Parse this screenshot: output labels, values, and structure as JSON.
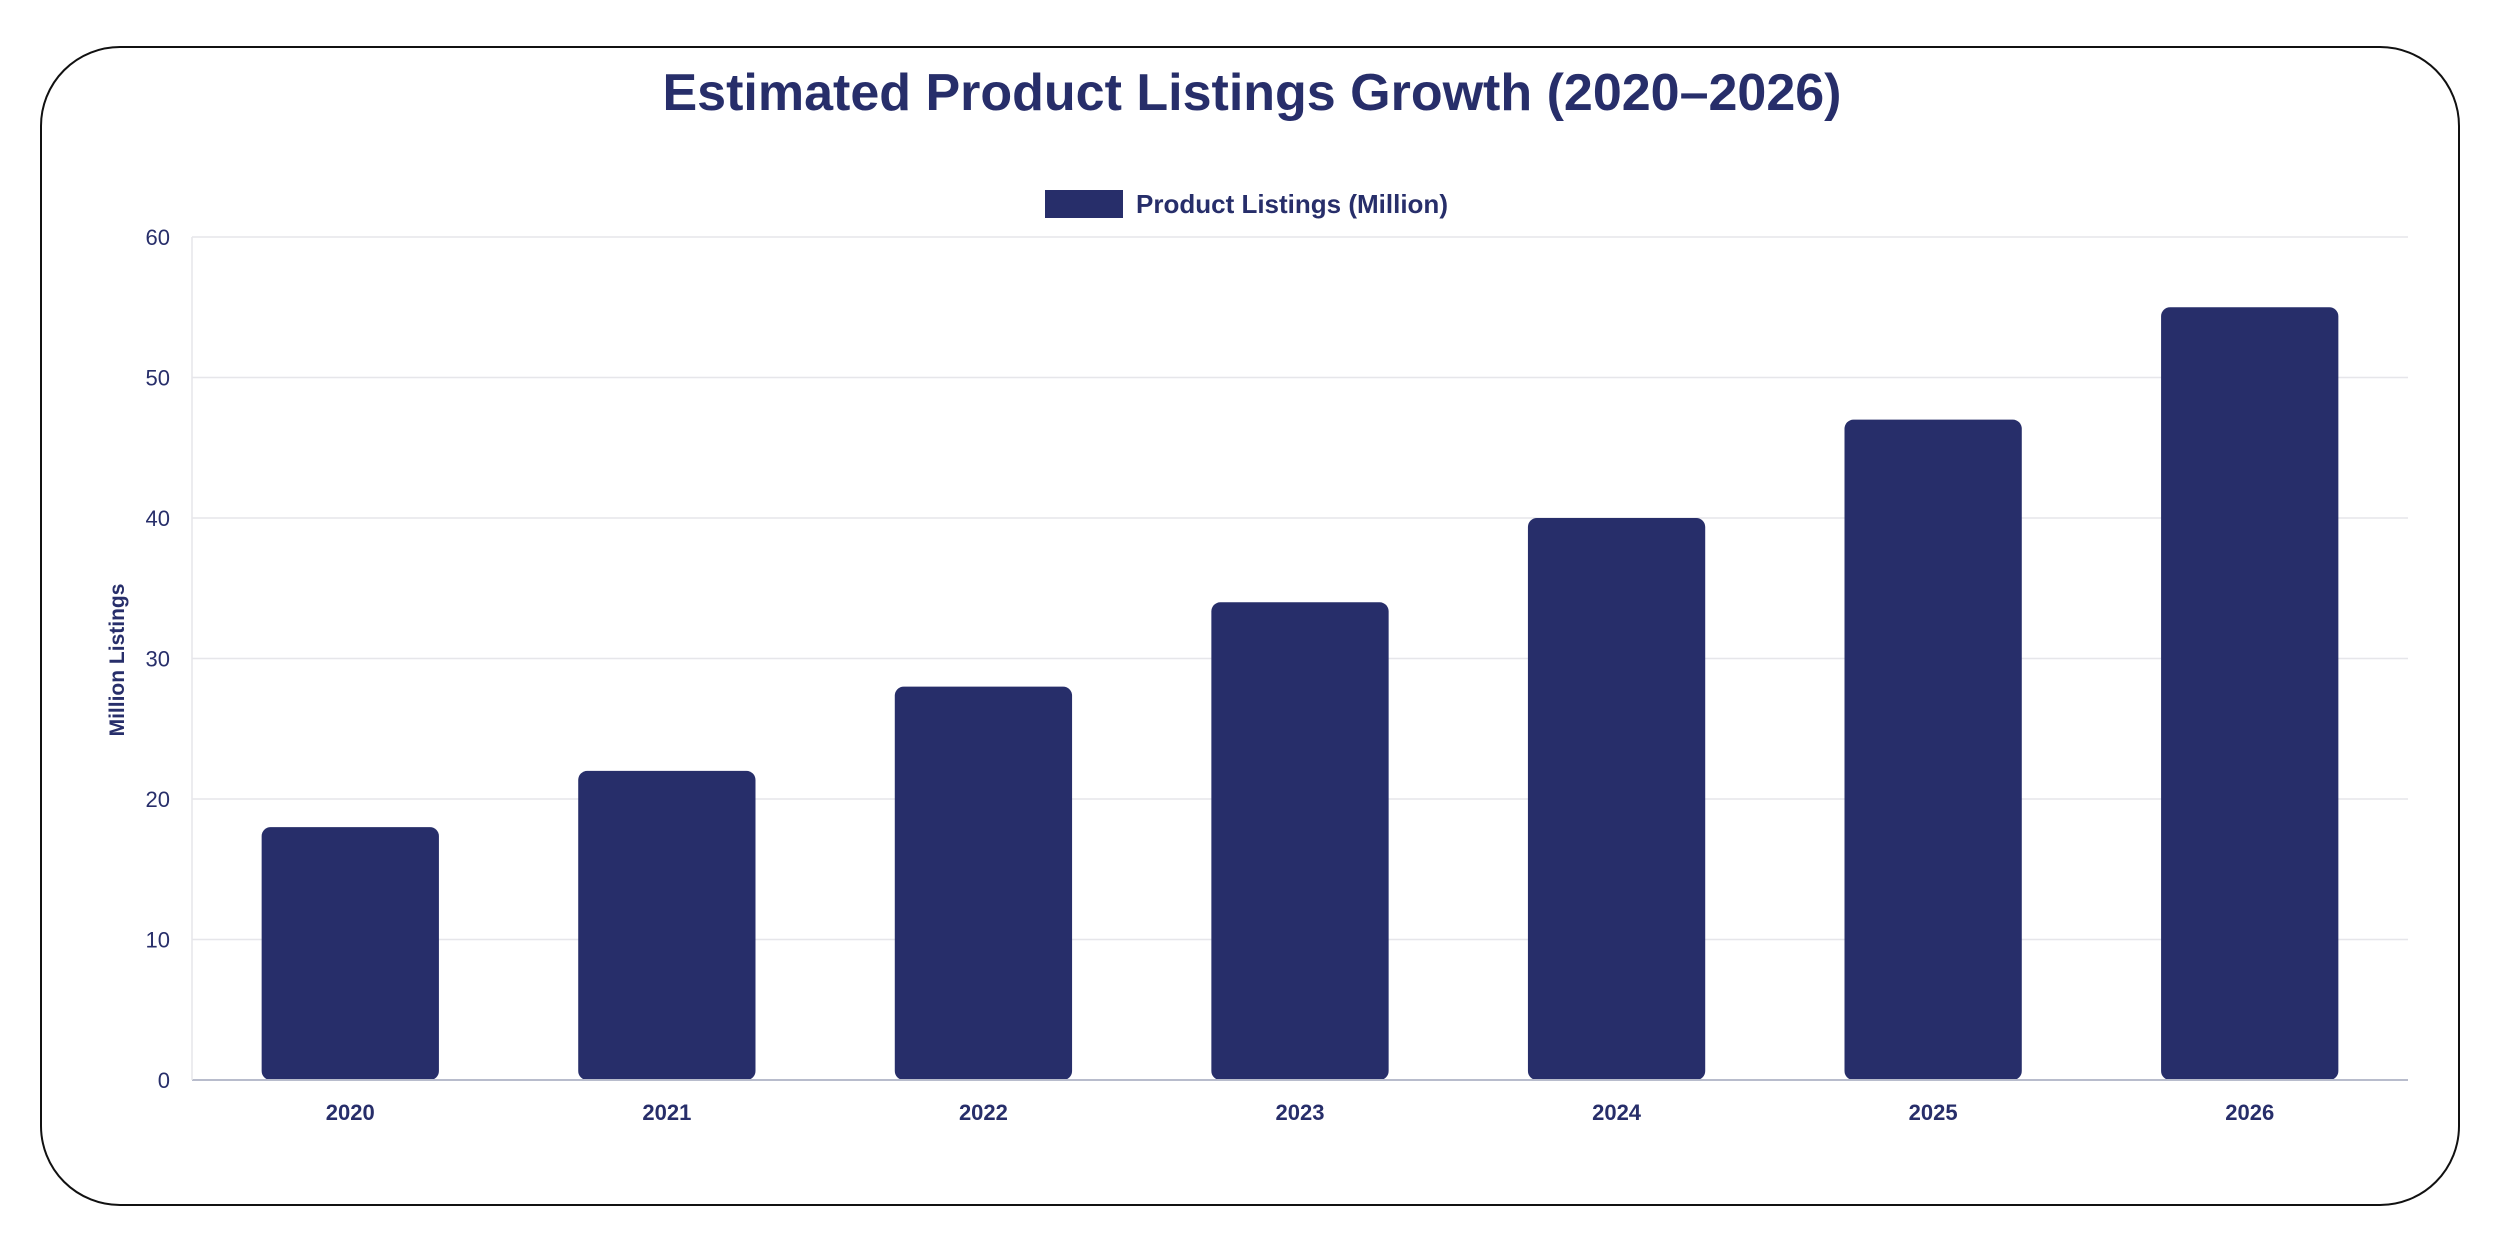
{
  "colors": {
    "bar": "#272e6a",
    "text": "#272e6a",
    "grid": "#e6e6ea",
    "axis": "#b8bccc",
    "frame": "#111111"
  },
  "chart_data": {
    "type": "bar",
    "title": "Estimated Product Listings Growth (2020–2026)",
    "xlabel": "",
    "ylabel": "Million Listings",
    "categories": [
      "2020",
      "2021",
      "2022",
      "2023",
      "2024",
      "2025",
      "2026"
    ],
    "series": [
      {
        "name": "Product Listings (Million)",
        "values": [
          18,
          22,
          28,
          34,
          40,
          47,
          55
        ]
      }
    ],
    "ylim": [
      0,
      60
    ],
    "yticks": [
      "0",
      "10",
      "20",
      "30",
      "40",
      "50",
      "60"
    ],
    "grid": true,
    "legend_position": "top-center"
  }
}
